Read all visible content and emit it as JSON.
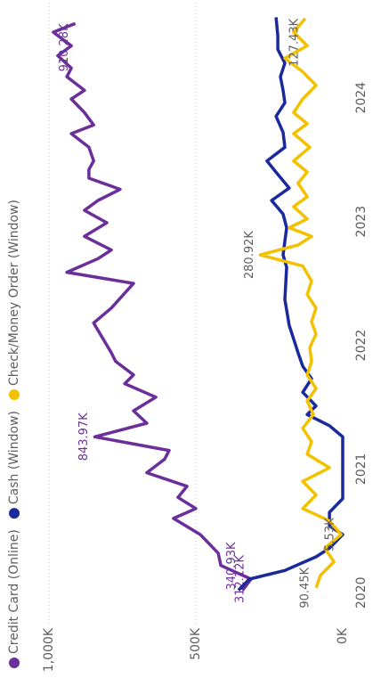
{
  "chart_data": {
    "type": "line",
    "xlim": [
      2019.75,
      2024.79
    ],
    "xticks": [
      2020,
      2021,
      2022,
      2023,
      2024
    ],
    "ylim": [
      0,
      1000000
    ],
    "yticks": [
      {
        "value": 0,
        "label": "0K"
      },
      {
        "value": 500000,
        "label": "500K"
      },
      {
        "value": 1000000,
        "label": "1,000K"
      }
    ],
    "grid": true,
    "legend": "top",
    "series": [
      {
        "name": "Credit Card (Online)",
        "color": "#6b2f9a",
        "x": [
          2020.02,
          2020.11,
          2020.22,
          2020.32,
          2020.47,
          2020.6,
          2020.68,
          2020.77,
          2020.86,
          2020.97,
          2021.08,
          2021.15,
          2021.26,
          2021.37,
          2021.47,
          2021.58,
          2021.69,
          2021.76,
          2021.87,
          2021.94,
          2022.06,
          2022.18,
          2022.3,
          2022.5,
          2022.59,
          2022.7,
          2022.77,
          2022.88,
          2022.99,
          2023.09,
          2023.17,
          2023.26,
          2023.35,
          2023.42,
          2023.49,
          2023.6,
          2023.71,
          2023.78,
          2023.88,
          2023.99,
          2024.06,
          2024.17,
          2024.24,
          2024.34,
          2024.42,
          2024.53,
          2024.6
        ],
        "values": [
          340930,
          312120,
          415000,
          424000,
          485000,
          576000,
          500000,
          561000,
          530000,
          667000,
          606000,
          591000,
          843970,
          667000,
          712000,
          636000,
          742000,
          712000,
          773000,
          788000,
          818000,
          848000,
          788000,
          712000,
          939000,
          833000,
          788000,
          879000,
          803000,
          879000,
          833000,
          758000,
          864000,
          864000,
          848000,
          864000,
          924000,
          848000,
          879000,
          924000,
          879000,
          939000,
          924000,
          970000,
          924000,
          985000,
          910280
        ],
        "value_labels": [
          "340.93K",
          "312.12K",
          null,
          null,
          null,
          null,
          null,
          null,
          null,
          null,
          null,
          null,
          "843.97K",
          null,
          null,
          null,
          null,
          null,
          null,
          null,
          null,
          null,
          null,
          null,
          null,
          null,
          null,
          null,
          null,
          null,
          null,
          null,
          null,
          null,
          null,
          null,
          null,
          null,
          null,
          null,
          null,
          null,
          null,
          null,
          null,
          null,
          "910.28K"
        ]
      },
      {
        "name": "Cash (Window)",
        "color": "#1a2a9c",
        "x": [
          2020.02,
          2020.11,
          2020.18,
          2020.29,
          2020.36,
          2020.47,
          2020.54,
          2020.65,
          2020.76,
          2020.97,
          2021.26,
          2021.35,
          2021.44,
          2021.51,
          2021.62,
          2021.73,
          2021.83,
          2021.94,
          2022.05,
          2022.16,
          2022.37,
          2022.63,
          2022.73,
          2022.84,
          2022.95,
          2023.06,
          2023.17,
          2023.27,
          2023.38,
          2023.49,
          2023.6,
          2023.72,
          2023.85,
          2023.96,
          2024.06,
          2024.17,
          2024.28,
          2024.39,
          2024.5,
          2024.65
        ],
        "values": [
          355000,
          318000,
          197000,
          91000,
          45000,
          0,
          45000,
          45000,
          0,
          0,
          0,
          45000,
          121000,
          91000,
          136000,
          106000,
          136000,
          152000,
          167000,
          182000,
          197000,
          191000,
          203000,
          197000,
          191000,
          203000,
          242000,
          182000,
          221000,
          258000,
          197000,
          203000,
          227000,
          197000,
          203000,
          212000,
          197000,
          221000,
          221000,
          227000
        ]
      },
      {
        "name": "Check/Money Order (Window)",
        "color": "#f2c200",
        "x": [
          2020.04,
          2020.14,
          2020.25,
          2020.36,
          2020.47,
          2020.58,
          2020.68,
          2020.79,
          2020.9,
          2021.01,
          2021.12,
          2021.22,
          2021.33,
          2021.44,
          2021.55,
          2021.65,
          2021.76,
          2021.87,
          2021.98,
          2022.09,
          2022.19,
          2022.3,
          2022.41,
          2022.52,
          2022.64,
          2022.73,
          2022.81,
          2022.88,
          2022.95,
          2023.02,
          2023.12,
          2023.2,
          2023.31,
          2023.4,
          2023.49,
          2023.6,
          2023.71,
          2023.79,
          2023.88,
          2023.99,
          2024.1,
          2024.21,
          2024.32,
          2024.42,
          2024.53,
          2024.64
        ],
        "values": [
          90450,
          76000,
          30000,
          61000,
          5530,
          45000,
          136000,
          91000,
          136000,
          45000,
          121000,
          106000,
          136000,
          100000,
          121000,
          91000,
          121000,
          106000,
          112000,
          91000,
          106000,
          91000,
          121000,
          106000,
          136000,
          280920,
          152000,
          106000,
          182000,
          121000,
          167000,
          121000,
          152000,
          121000,
          167000,
          112000,
          167000,
          121000,
          167000,
          136000,
          91000,
          136000,
          197000,
          121000,
          167000,
          127430
        ],
        "value_labels": [
          "90.45K",
          null,
          null,
          null,
          "5.53K",
          null,
          null,
          null,
          null,
          null,
          null,
          null,
          null,
          null,
          null,
          null,
          null,
          null,
          null,
          null,
          null,
          null,
          null,
          null,
          null,
          "280.92K",
          null,
          null,
          null,
          null,
          null,
          null,
          null,
          null,
          null,
          null,
          null,
          null,
          null,
          null,
          null,
          null,
          null,
          null,
          null,
          "127.43K"
        ]
      }
    ]
  }
}
